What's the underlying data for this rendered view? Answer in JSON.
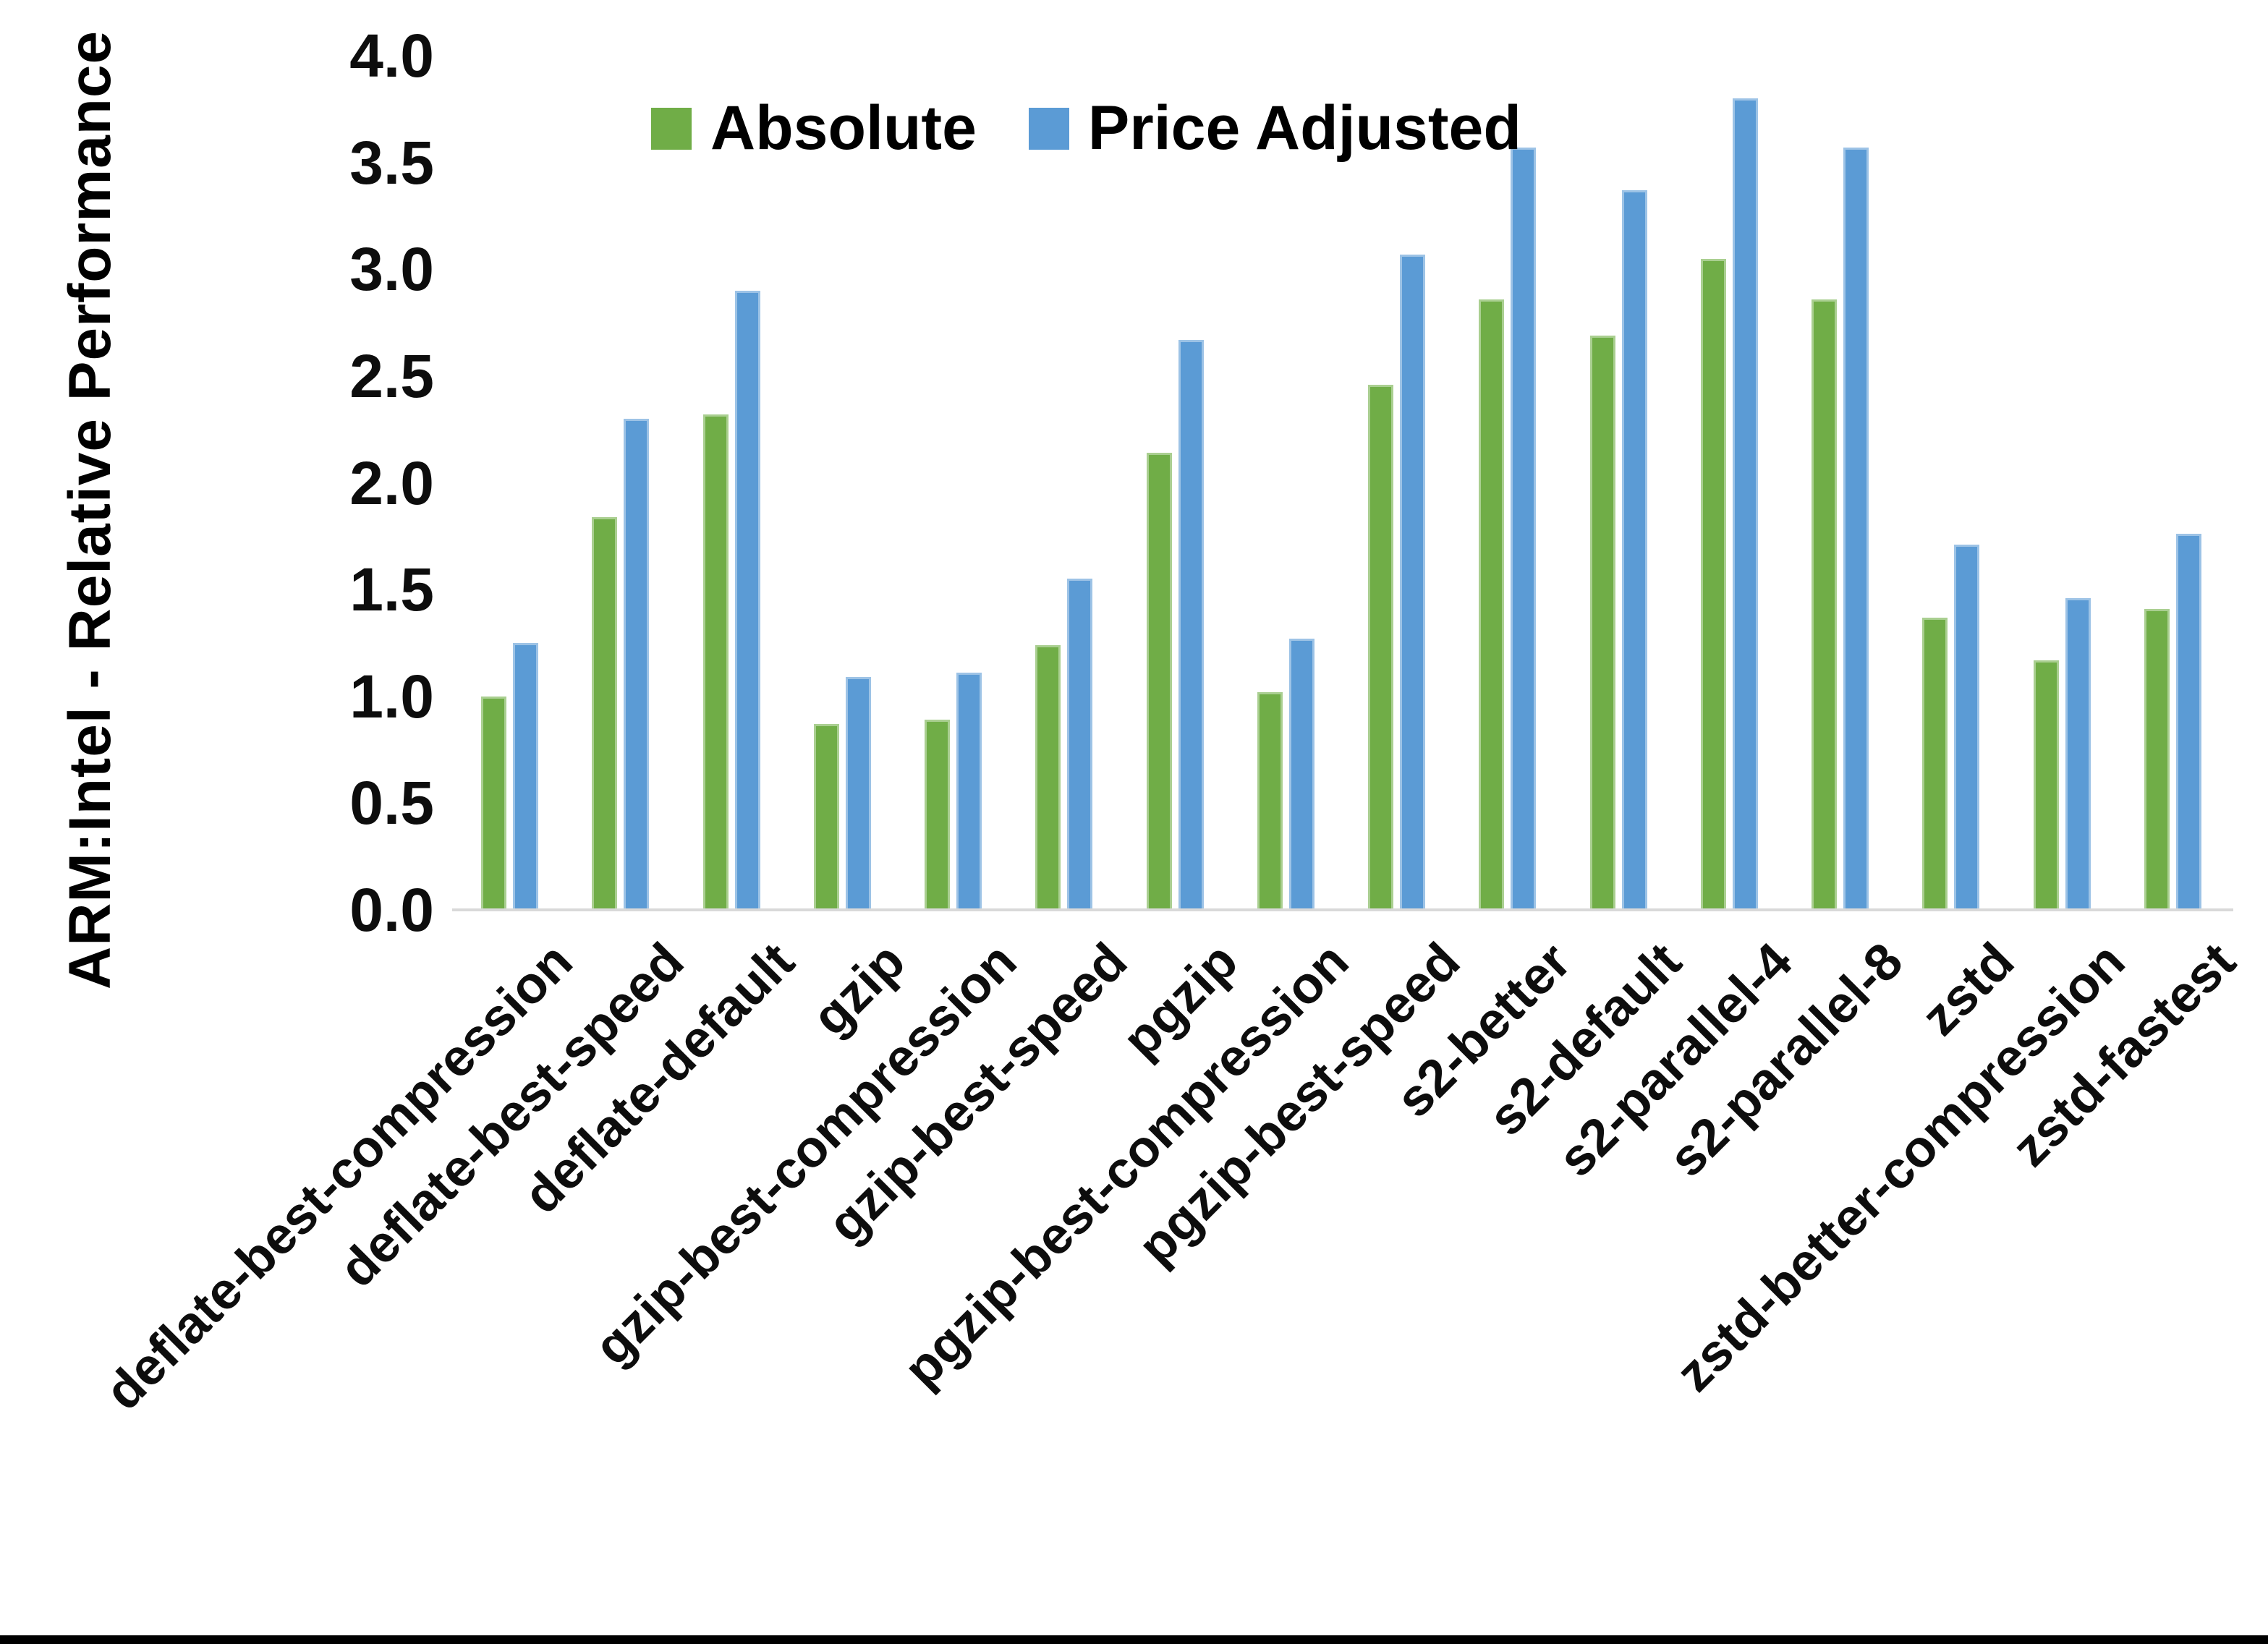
{
  "y_axis": {
    "title": "ARM:Intel - Relative Performance",
    "ticks": [
      "4.0",
      "3.5",
      "3.0",
      "2.5",
      "2.0",
      "1.5",
      "1.0",
      "0.5",
      "0.0"
    ]
  },
  "legend": [
    {
      "label": "Absolute",
      "color": "#70AD47"
    },
    {
      "label": "Price Adjusted",
      "color": "#5B9BD5"
    }
  ],
  "chart_data": {
    "type": "bar",
    "title": "",
    "xlabel": "",
    "ylabel": "ARM:Intel - Relative Performance",
    "ylim": [
      0,
      4.0
    ],
    "ytick_step": 0.5,
    "grid": false,
    "legend_position": "top",
    "categories": [
      "deflate-best-compression",
      "deflate-best-speed",
      "deflate-default",
      "gzip",
      "gzip-best-compression",
      "gzip-best-speed",
      "pgzip",
      "pgzip-best-compression",
      "pgzip-best-speed",
      "s2-better",
      "s2-default",
      "s2-parallel-4",
      "s2-parallel-8",
      "zstd",
      "zstd-better-compression",
      "zstd-fastest"
    ],
    "series": [
      {
        "name": "Absolute",
        "color": "#70AD47",
        "border_color": "#aacf91",
        "values": [
          1.0,
          1.84,
          2.32,
          0.87,
          0.89,
          1.24,
          2.14,
          1.02,
          2.46,
          2.86,
          2.69,
          3.05,
          2.86,
          1.37,
          1.17,
          1.41
        ]
      },
      {
        "name": "Price Adjusted",
        "color": "#5B9BD5",
        "border_color": "#9dc3e6",
        "values": [
          1.25,
          2.3,
          2.9,
          1.09,
          1.11,
          1.55,
          2.67,
          1.27,
          3.07,
          3.57,
          3.37,
          3.8,
          3.57,
          1.71,
          1.46,
          1.76
        ]
      }
    ]
  }
}
